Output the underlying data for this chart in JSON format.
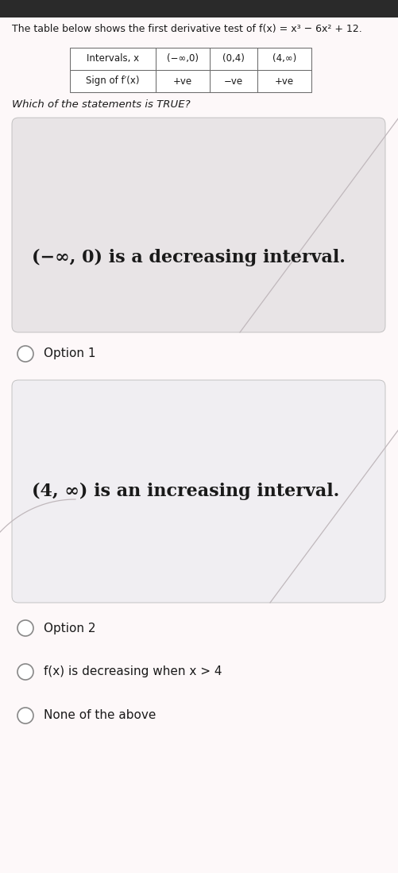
{
  "title_text": "The table below shows the first derivative test of f(x) = x³ − 6x² + 12.",
  "table_col0": "Intervals, x",
  "table_col1": "(−∞,0)",
  "table_col2": "(0,4)",
  "table_col3": "(4,∞)",
  "table_row_label": "Sign of f′(x)",
  "table_sign1": "+ve",
  "table_sign2": "−ve",
  "table_sign3": "+ve",
  "question": "Which of the statements is TRUE?",
  "option1_text": "(−∞, 0) is a decreasing interval.",
  "option1_label": "Option 1",
  "option2_text": "(4, ∞) is an increasing interval.",
  "option2_label": "Option 2",
  "option3_text": "f(x) is decreasing when x > 4",
  "option4_text": "None of the above",
  "bg_color": "#f5eef0",
  "card1_color": "#e8e4e6",
  "card2_color": "#f0eef2",
  "white": "#ffffff",
  "text_dark": "#1a1a1a",
  "text_mid": "#333333",
  "border_color": "#bbbbbb",
  "diag_color": "#c0b8bc",
  "title_fontsize": 9.0,
  "table_fontsize": 8.5,
  "question_fontsize": 9.5,
  "card_text_fontsize": 16,
  "radio_label_fontsize": 11
}
